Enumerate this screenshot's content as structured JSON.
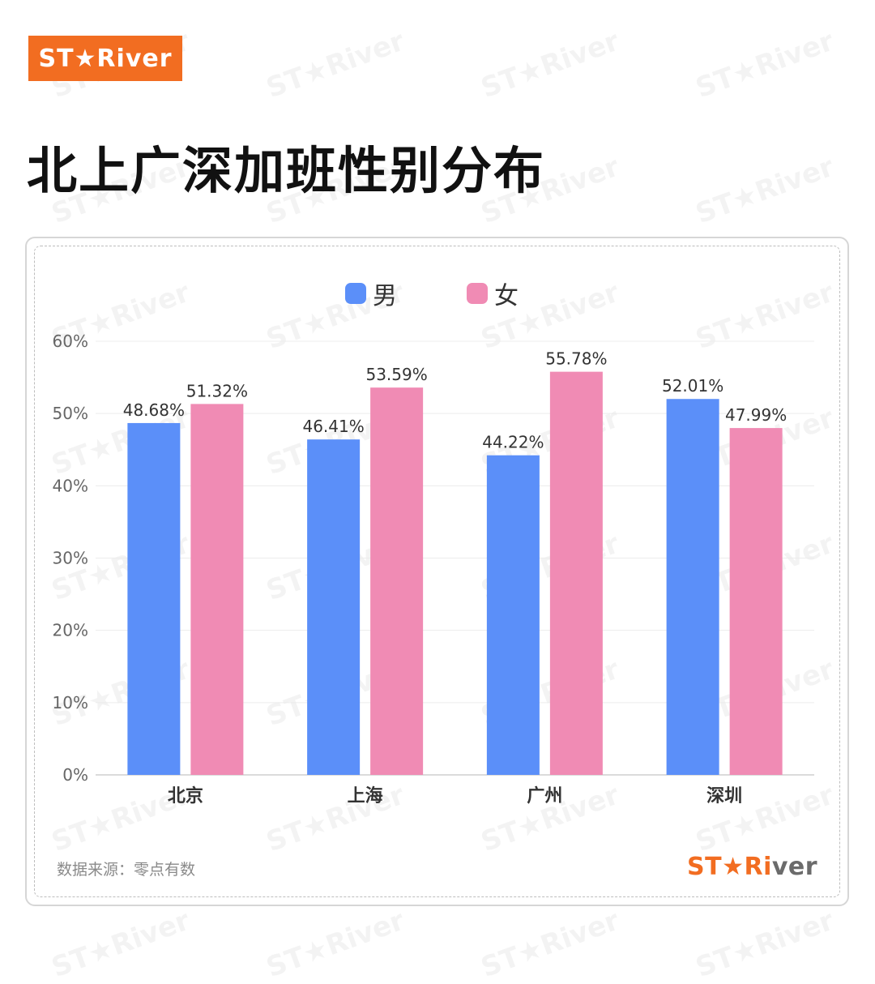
{
  "brand": {
    "logo_text": "ST★River",
    "logo_color": "#f26d21"
  },
  "page": {
    "title": "北上广深加班性别分布"
  },
  "legend": [
    {
      "label": "男",
      "color": "#5b8ff9"
    },
    {
      "label": "女",
      "color": "#f08bb4"
    }
  ],
  "chart_data": {
    "type": "bar",
    "categories": [
      "北京",
      "上海",
      "广州",
      "深圳"
    ],
    "series": [
      {
        "name": "男",
        "values": [
          48.68,
          46.41,
          44.22,
          52.01
        ],
        "labels": [
          "48.68%",
          "46.41%",
          "44.22%",
          "52.01%"
        ],
        "color": "#5b8ff9"
      },
      {
        "name": "女",
        "values": [
          51.32,
          53.59,
          55.78,
          47.99
        ],
        "labels": [
          "51.32%",
          "53.59%",
          "55.78%",
          "47.99%"
        ],
        "color": "#f08bb4"
      }
    ],
    "y_ticks": [
      0,
      10,
      20,
      30,
      40,
      50,
      60
    ],
    "y_tick_labels": [
      "0%",
      "10%",
      "20%",
      "30%",
      "40%",
      "50%",
      "60%"
    ],
    "ylim": [
      0,
      60
    ],
    "grid": true,
    "legend_position": "top-center"
  },
  "footer": {
    "source": "数据来源：零点有数",
    "logo_main": "ST★Ri",
    "logo_tail": "ver"
  }
}
